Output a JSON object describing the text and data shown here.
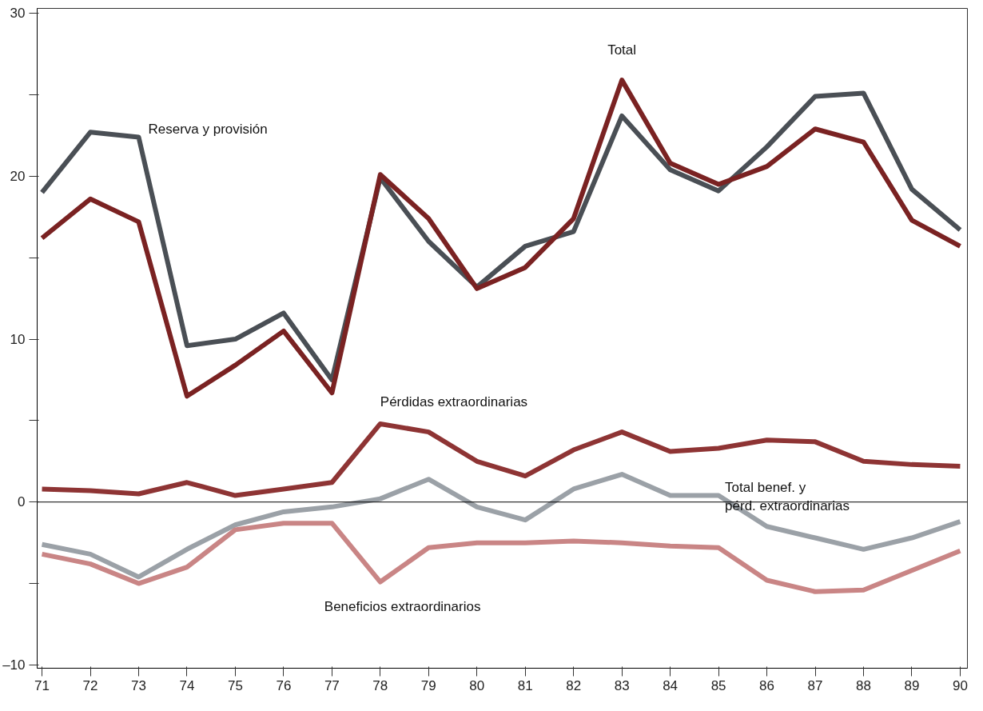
{
  "chart_data": {
    "type": "line",
    "x": [
      71,
      72,
      73,
      74,
      75,
      76,
      77,
      78,
      79,
      80,
      81,
      82,
      83,
      84,
      85,
      86,
      87,
      88,
      89,
      90
    ],
    "xlim": [
      70.9,
      90.15
    ],
    "ylim": [
      -10.2,
      30.3
    ],
    "xticks": [
      71,
      72,
      73,
      74,
      75,
      76,
      77,
      78,
      79,
      80,
      81,
      82,
      83,
      84,
      85,
      86,
      87,
      88,
      89,
      90
    ],
    "yticks": [
      30,
      {
        "value": 25,
        "label": null
      },
      20,
      {
        "value": 15,
        "label": null
      },
      10,
      {
        "value": 5,
        "label": null
      },
      0,
      {
        "value": -5,
        "label": null
      },
      {
        "value": -10,
        "label": "–10"
      }
    ],
    "grid": false,
    "marker": "none",
    "line_style": "solid",
    "series": [
      {
        "name": "Reserva y provisión",
        "color": "#4a4f55",
        "values": [
          19.0,
          22.7,
          22.4,
          9.6,
          10.0,
          11.6,
          7.5,
          19.9,
          16.0,
          13.2,
          15.7,
          16.6,
          23.7,
          20.4,
          19.1,
          21.8,
          24.9,
          25.1,
          19.2,
          16.7
        ]
      },
      {
        "name": "Total",
        "color": "#7a2222",
        "values": [
          16.2,
          18.6,
          17.2,
          6.5,
          8.4,
          10.5,
          6.7,
          20.1,
          17.4,
          13.1,
          14.4,
          17.4,
          25.9,
          20.8,
          19.5,
          20.6,
          22.9,
          22.1,
          17.3,
          15.7
        ]
      },
      {
        "name": "Pérdidas extraordinarias",
        "color": "#8e3434",
        "values": [
          0.8,
          0.7,
          0.5,
          1.2,
          0.4,
          0.8,
          1.2,
          4.8,
          4.3,
          2.5,
          1.6,
          3.2,
          4.3,
          3.1,
          3.3,
          3.8,
          3.7,
          2.5,
          2.3,
          2.2
        ]
      },
      {
        "name": "Total benef. y\npérd. extraordinarias",
        "color": "#9ba1a7",
        "values": [
          -2.6,
          -3.2,
          -4.6,
          -2.9,
          -1.4,
          -0.6,
          -0.3,
          0.2,
          1.4,
          -0.3,
          -1.1,
          0.8,
          1.7,
          0.4,
          0.4,
          -1.5,
          -2.2,
          -2.9,
          -2.2,
          -1.2
        ]
      },
      {
        "name": "Beneficios extraordinarios",
        "color": "#c98585",
        "values": [
          -3.2,
          -3.8,
          -5.0,
          -4.0,
          -1.7,
          -1.3,
          -1.3,
          -4.9,
          -2.8,
          -2.5,
          -2.5,
          -2.4,
          -2.5,
          -2.7,
          -2.8,
          -4.8,
          -5.5,
          -5.4,
          -4.2,
          -3.0
        ]
      }
    ],
    "ref_lines": [
      {
        "axis": "y",
        "value": 0,
        "color": "#000000"
      }
    ]
  }
}
